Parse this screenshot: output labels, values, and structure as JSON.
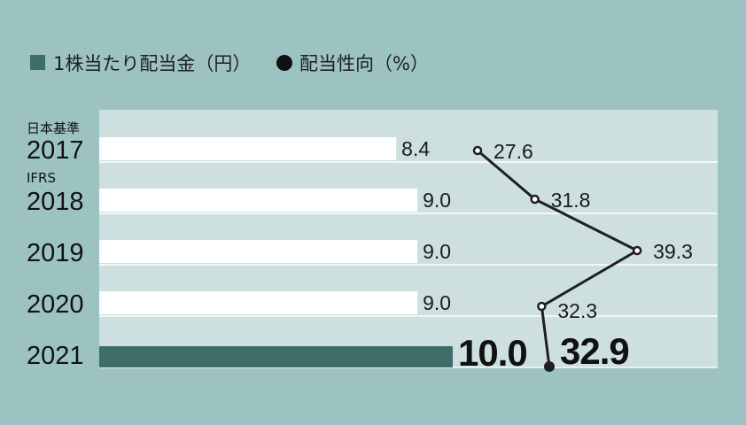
{
  "legend": {
    "dividend_label": "1株当たり配当金（円）",
    "payout_label": "配当性向（%）"
  },
  "standards": [
    "日本基準",
    "IFRS"
  ],
  "colors": {
    "background": "#9cc3c2",
    "panel": "#cde0df",
    "bar": "#ffffff",
    "bar_highlight": "#3f6e6a",
    "line": "#1f1f1f"
  },
  "chart_data": {
    "type": "bar+line",
    "categories": [
      "2017",
      "2018",
      "2019",
      "2020",
      "2021"
    ],
    "series": [
      {
        "name": "1株当たり配当金（円）",
        "type": "bar",
        "values": [
          8.4,
          9.0,
          9.0,
          9.0,
          10.0
        ],
        "labels": [
          "8.4",
          "9.0",
          "9.0",
          "9.0",
          "10.0"
        ]
      },
      {
        "name": "配当性向（%）",
        "type": "line",
        "values": [
          27.6,
          31.8,
          39.3,
          32.3,
          32.9
        ],
        "labels": [
          "27.6",
          "31.8",
          "39.3",
          "32.3",
          "32.9"
        ]
      }
    ],
    "highlight_category": "2021"
  }
}
